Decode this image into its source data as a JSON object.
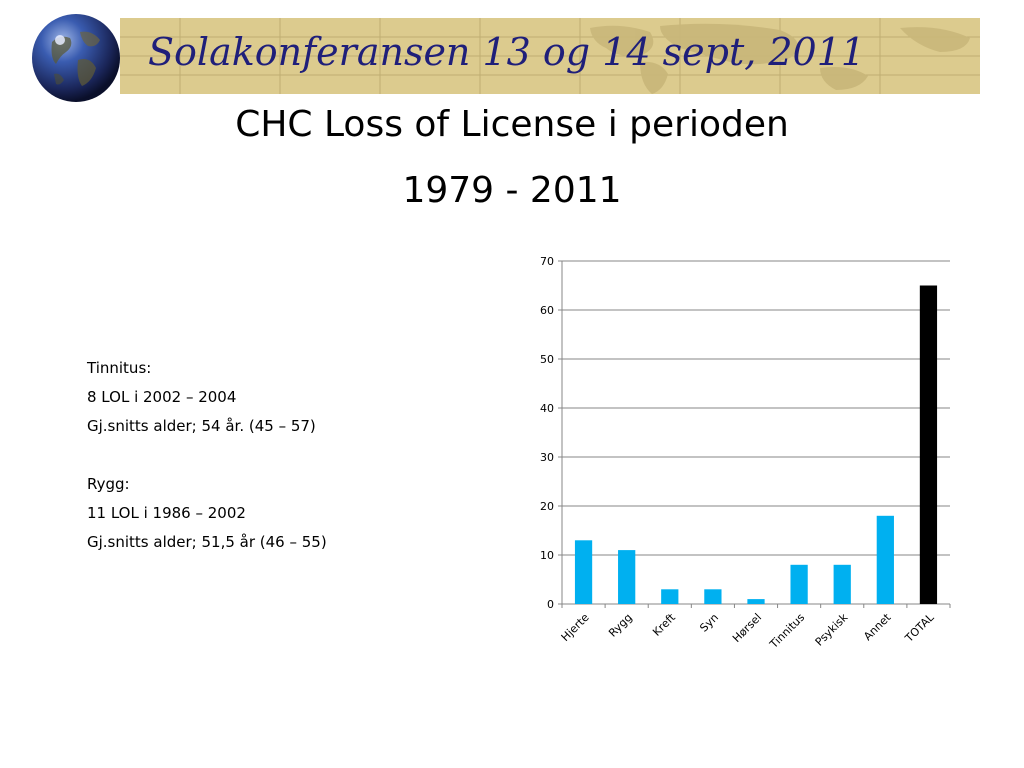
{
  "header": {
    "conference_title": "Solakonferansen 13 og 14 sept, 2011"
  },
  "slide": {
    "title_line1": "CHC Loss of License i perioden",
    "title_line2": "1979 - 2011"
  },
  "notes": {
    "lines": [
      "Tinnitus:",
      "8 LOL i 2002 – 2004",
      "Gj.snitts alder; 54 år. (45 – 57)",
      "",
      "Rygg:",
      "11 LOL i 1986 – 2002",
      "Gj.snitts alder; 51,5 år (46 – 55)"
    ]
  },
  "colors": {
    "banner": "#dccb8e",
    "title_text": "#1f1f7a",
    "bar": "#00b0f0",
    "total_bar": "#000000",
    "grid": "#878787"
  },
  "icons": {
    "logo": "globe-icon"
  },
  "chart_data": {
    "type": "bar",
    "categories": [
      "Hjerte",
      "Rygg",
      "Kreft",
      "Syn",
      "Hørsel",
      "Tinnitus",
      "Psykisk",
      "Annet",
      "TOTAL"
    ],
    "values": [
      13,
      11,
      3,
      3,
      1,
      8,
      8,
      18,
      65
    ],
    "title": "",
    "xlabel": "",
    "ylabel": "",
    "ylim": [
      0,
      70
    ],
    "yticks": [
      0,
      10,
      20,
      30,
      40,
      50,
      60,
      70
    ],
    "grid": true,
    "legend": "none"
  }
}
